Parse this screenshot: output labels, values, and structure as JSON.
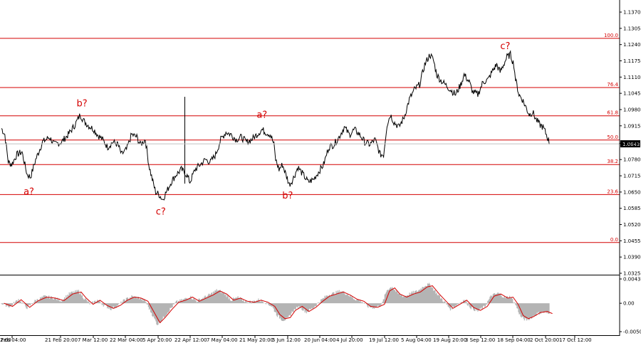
{
  "chart_data": [
    {
      "type": "line",
      "series": [],
      "instrument_last_price": "1.0843",
      "y_ticks": [
        "1.1370",
        "1.1305",
        "1.1240",
        "1.1175",
        "1.1110",
        "1.1045",
        "1.0980",
        "1.0915",
        "1.0845",
        "1.0780",
        "1.0715",
        "1.0650",
        "1.0585",
        "1.0520",
        "1.0455",
        "1.0390",
        "1.0325"
      ],
      "ylim": [
        1.0325,
        1.137
      ],
      "x_ticks": [
        "7 Feb 04:00",
        "21 Feb 20:00",
        "7 Mar 12:00",
        "22 Mar 04:00",
        "5 Apr 20:00",
        "22 Apr 12:00",
        "7 May 04:00",
        "21 May 20:00",
        "5 Jun 12:00",
        "20 Jun 04:00",
        "4 Jul 20:00",
        "19 Jul 12:00",
        "5 Aug 04:00",
        "19 Aug 20:00",
        "3 Sep 12:00",
        "18 Sep 04:00",
        "2 Oct 20:00",
        "17 Oct 12:00"
      ],
      "x_tick_partial_left": "2:00",
      "fib_levels": [
        {
          "label": "100.0",
          "value": 1.1265
        },
        {
          "label": "76.4",
          "value": 1.1068
        },
        {
          "label": "61.8",
          "value": 1.0955
        },
        {
          "label": "50.0",
          "value": 1.0858
        },
        {
          "label": "38.2",
          "value": 1.076
        },
        {
          "label": "23.6",
          "value": 1.064
        },
        {
          "label": "0.0",
          "value": 1.0448
        }
      ],
      "wave_labels": [
        {
          "text": "a?",
          "x_index": 32,
          "y": 1.0685,
          "placement": "below"
        },
        {
          "text": "b?",
          "x_index": 94,
          "y": 1.0975,
          "placement": "above"
        },
        {
          "text": "c?",
          "x_index": 186,
          "y": 1.0605,
          "placement": "below"
        },
        {
          "text": "a?",
          "x_index": 304,
          "y": 1.093,
          "placement": "above"
        },
        {
          "text": "b?",
          "x_index": 334,
          "y": 1.067,
          "placement": "below"
        },
        {
          "text": "c?",
          "x_index": 588,
          "y": 1.1205,
          "placement": "above"
        }
      ],
      "price_points": [
        [
          0,
          1.0905
        ],
        [
          4,
          1.088
        ],
        [
          8,
          1.077
        ],
        [
          12,
          1.076
        ],
        [
          18,
          1.08
        ],
        [
          24,
          1.081
        ],
        [
          30,
          1.072
        ],
        [
          34,
          1.071
        ],
        [
          40,
          1.078
        ],
        [
          48,
          1.085
        ],
        [
          56,
          1.087
        ],
        [
          62,
          1.084
        ],
        [
          70,
          1.085
        ],
        [
          78,
          1.088
        ],
        [
          86,
          1.092
        ],
        [
          92,
          1.096
        ],
        [
          96,
          1.0935
        ],
        [
          102,
          1.0915
        ],
        [
          108,
          1.09
        ],
        [
          112,
          1.088
        ],
        [
          118,
          1.086
        ],
        [
          124,
          1.083
        ],
        [
          130,
          1.085
        ],
        [
          136,
          1.084
        ],
        [
          140,
          1.08
        ],
        [
          146,
          1.082
        ],
        [
          152,
          1.088
        ],
        [
          158,
          1.087
        ],
        [
          162,
          1.084
        ],
        [
          168,
          1.086
        ],
        [
          172,
          1.076
        ],
        [
          176,
          1.07
        ],
        [
          180,
          1.065
        ],
        [
          184,
          1.064
        ],
        [
          188,
          1.062
        ],
        [
          194,
          1.066
        ],
        [
          198,
          1.069
        ],
        [
          204,
          1.072
        ],
        [
          210,
          1.074
        ],
        [
          216,
          1.072
        ],
        [
          220,
          1.069
        ],
        [
          226,
          1.074
        ],
        [
          232,
          1.076
        ],
        [
          238,
          1.078
        ],
        [
          244,
          1.077
        ],
        [
          250,
          1.08
        ],
        [
          256,
          1.086
        ],
        [
          262,
          1.089
        ],
        [
          268,
          1.088
        ],
        [
          274,
          1.086
        ],
        [
          280,
          1.087
        ],
        [
          286,
          1.085
        ],
        [
          292,
          1.086
        ],
        [
          298,
          1.088
        ],
        [
          304,
          1.09
        ],
        [
          308,
          1.089
        ],
        [
          314,
          1.088
        ],
        [
          318,
          1.084
        ],
        [
          320,
          1.078
        ],
        [
          324,
          1.074
        ],
        [
          328,
          1.076
        ],
        [
          332,
          1.072
        ],
        [
          336,
          1.068
        ],
        [
          340,
          1.07
        ],
        [
          346,
          1.075
        ],
        [
          352,
          1.072
        ],
        [
          358,
          1.069
        ],
        [
          364,
          1.07
        ],
        [
          370,
          1.073
        ],
        [
          376,
          1.076
        ],
        [
          382,
          1.083
        ],
        [
          388,
          1.084
        ],
        [
          394,
          1.087
        ],
        [
          400,
          1.091
        ],
        [
          406,
          1.088
        ],
        [
          412,
          1.09
        ],
        [
          418,
          1.088
        ],
        [
          424,
          1.085
        ],
        [
          430,
          1.084
        ],
        [
          436,
          1.086
        ],
        [
          442,
          1.08
        ],
        [
          446,
          1.08
        ],
        [
          450,
          1.092
        ],
        [
          454,
          1.096
        ],
        [
          458,
          1.093
        ],
        [
          464,
          1.091
        ],
        [
          470,
          1.095
        ],
        [
          476,
          1.102
        ],
        [
          482,
          1.106
        ],
        [
          488,
          1.108
        ],
        [
          494,
          1.116
        ],
        [
          500,
          1.12
        ],
        [
          504,
          1.118
        ],
        [
          508,
          1.112
        ],
        [
          512,
          1.11
        ],
        [
          518,
          1.108
        ],
        [
          524,
          1.106
        ],
        [
          530,
          1.104
        ],
        [
          536,
          1.108
        ],
        [
          540,
          1.112
        ],
        [
          546,
          1.109
        ],
        [
          550,
          1.105
        ],
        [
          556,
          1.104
        ],
        [
          562,
          1.109
        ],
        [
          568,
          1.11
        ],
        [
          574,
          1.114
        ],
        [
          578,
          1.116
        ],
        [
          582,
          1.113
        ],
        [
          586,
          1.116
        ],
        [
          590,
          1.119
        ],
        [
          594,
          1.12
        ],
        [
          598,
          1.116
        ],
        [
          600,
          1.11
        ],
        [
          604,
          1.104
        ],
        [
          608,
          1.102
        ],
        [
          612,
          1.099
        ],
        [
          616,
          1.096
        ],
        [
          620,
          1.097
        ],
        [
          624,
          1.094
        ],
        [
          628,
          1.092
        ],
        [
          632,
          1.091
        ],
        [
          636,
          1.088
        ],
        [
          640,
          1.0843
        ]
      ],
      "indicator": {
        "y_ticks": [
          "0.00436",
          "0.00",
          "-0.00509"
        ],
        "ylim": [
          -0.00509,
          0.00436
        ],
        "values": [
          [
            0,
            0.0
          ],
          [
            10,
            -0.0006
          ],
          [
            20,
            0.0007
          ],
          [
            30,
            -0.0008
          ],
          [
            40,
            0.0005
          ],
          [
            50,
            0.0012
          ],
          [
            60,
            0.001
          ],
          [
            70,
            0.0005
          ],
          [
            80,
            0.0018
          ],
          [
            90,
            0.0022
          ],
          [
            96,
            0.001
          ],
          [
            104,
            -0.0002
          ],
          [
            112,
            0.0006
          ],
          [
            120,
            -0.0004
          ],
          [
            128,
            -0.001
          ],
          [
            136,
            -0.0004
          ],
          [
            144,
            0.0006
          ],
          [
            152,
            0.0012
          ],
          [
            160,
            0.001
          ],
          [
            168,
            0.0004
          ],
          [
            176,
            -0.002
          ],
          [
            182,
            -0.0038
          ],
          [
            188,
            -0.0028
          ],
          [
            196,
            -0.0012
          ],
          [
            204,
            0.0002
          ],
          [
            212,
            0.0006
          ],
          [
            220,
            0.0012
          ],
          [
            228,
            0.0004
          ],
          [
            236,
            0.001
          ],
          [
            244,
            0.0016
          ],
          [
            252,
            0.0024
          ],
          [
            260,
            0.0018
          ],
          [
            268,
            0.0006
          ],
          [
            276,
            0.001
          ],
          [
            284,
            0.0004
          ],
          [
            292,
            0.0002
          ],
          [
            300,
            0.0006
          ],
          [
            308,
            0.0002
          ],
          [
            316,
            -0.0006
          ],
          [
            322,
            -0.0022
          ],
          [
            328,
            -0.003
          ],
          [
            334,
            -0.0028
          ],
          [
            340,
            -0.0014
          ],
          [
            348,
            -0.0006
          ],
          [
            356,
            -0.0016
          ],
          [
            364,
            -0.0008
          ],
          [
            372,
            0.0004
          ],
          [
            380,
            0.0014
          ],
          [
            388,
            0.0018
          ],
          [
            396,
            0.0022
          ],
          [
            404,
            0.0016
          ],
          [
            412,
            0.0008
          ],
          [
            420,
            0.0004
          ],
          [
            428,
            -0.0006
          ],
          [
            436,
            -0.0008
          ],
          [
            444,
            -0.0002
          ],
          [
            450,
            0.0024
          ],
          [
            456,
            0.003
          ],
          [
            462,
            0.0018
          ],
          [
            470,
            0.0012
          ],
          [
            478,
            0.0018
          ],
          [
            486,
            0.0022
          ],
          [
            494,
            0.0032
          ],
          [
            500,
            0.0034
          ],
          [
            508,
            0.0018
          ],
          [
            516,
            0.0004
          ],
          [
            524,
            -0.001
          ],
          [
            532,
            -0.0002
          ],
          [
            540,
            0.0006
          ],
          [
            548,
            -0.0008
          ],
          [
            556,
            -0.0014
          ],
          [
            564,
            -0.0006
          ],
          [
            572,
            0.0014
          ],
          [
            580,
            0.0018
          ],
          [
            588,
            0.001
          ],
          [
            594,
            0.0012
          ],
          [
            600,
            -0.0002
          ],
          [
            606,
            -0.0024
          ],
          [
            612,
            -0.003
          ],
          [
            618,
            -0.0026
          ],
          [
            626,
            -0.0018
          ],
          [
            634,
            -0.0016
          ],
          [
            640,
            -0.002
          ]
        ]
      }
    }
  ]
}
